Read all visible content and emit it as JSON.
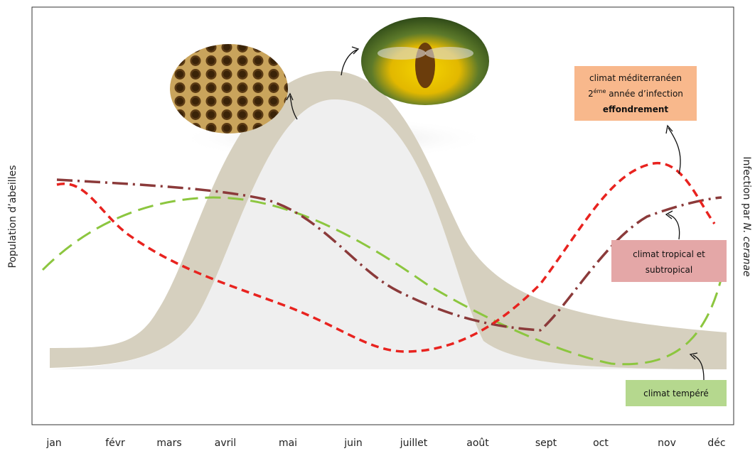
{
  "axis_labels": {
    "left": "Population d’abeilles",
    "right_prefix": "Infection par ",
    "right_italic": "N. ceranae"
  },
  "months": [
    "jan",
    "févr",
    "mars",
    "avril",
    "mai",
    "juin",
    "juillet",
    "août",
    "sept",
    "oct",
    "nov",
    "déc"
  ],
  "annotations": {
    "mediterranean": {
      "line1": "climat méditerranéen",
      "line2_prefix": "2",
      "line2_sup": "éme",
      "line2_rest": " année d’infection",
      "line3": "effondrement"
    },
    "tropical": {
      "line1": "climat tropical et",
      "line2": "subtropical"
    },
    "temperate": {
      "line1": "climat tempéré"
    }
  }
}
